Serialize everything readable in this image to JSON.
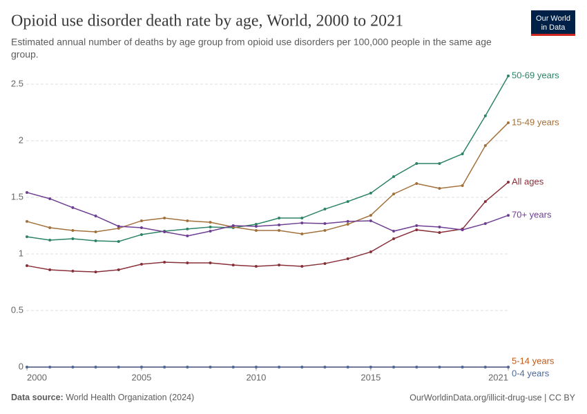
{
  "chart_data": {
    "type": "line",
    "title": "Opioid use disorder death rate by age, World, 2000 to 2021",
    "subtitle_lines": [
      "Estimated annual number of deaths by age group from opioid use disorders per 100,000 people in the same age",
      "group."
    ],
    "logo": [
      "Our World",
      "in Data"
    ],
    "source_label": "Data source:",
    "source": "World Health Organization (2024)",
    "url_license": "OurWorldinData.org/illicit-drug-use | CC BY",
    "x": [
      2000,
      2001,
      2002,
      2003,
      2004,
      2005,
      2006,
      2007,
      2008,
      2009,
      2010,
      2011,
      2012,
      2013,
      2014,
      2015,
      2016,
      2017,
      2018,
      2019,
      2020,
      2021
    ],
    "xlim": [
      2000,
      2021
    ],
    "xticks": [
      2000,
      2005,
      2010,
      2015,
      2021
    ],
    "ylim": [
      0,
      2.5
    ],
    "yticks": [
      0,
      0.5,
      1,
      1.5,
      2,
      2.5
    ],
    "grid": true,
    "series": [
      {
        "name": "50-69 years",
        "color": "#2c8465",
        "values": [
          1.152,
          1.122,
          1.134,
          1.116,
          1.11,
          1.171,
          1.201,
          1.22,
          1.238,
          1.232,
          1.262,
          1.317,
          1.317,
          1.396,
          1.463,
          1.537,
          1.683,
          1.799,
          1.799,
          1.884,
          2.22,
          2.573
        ]
      },
      {
        "name": "15-49 years",
        "color": "#a2703b",
        "values": [
          1.287,
          1.232,
          1.207,
          1.195,
          1.226,
          1.293,
          1.317,
          1.293,
          1.28,
          1.238,
          1.207,
          1.207,
          1.177,
          1.207,
          1.262,
          1.341,
          1.53,
          1.622,
          1.579,
          1.604,
          1.957,
          2.159
        ]
      },
      {
        "name": "All ages",
        "color": "#883039",
        "values": [
          0.896,
          0.86,
          0.848,
          0.841,
          0.86,
          0.909,
          0.927,
          0.921,
          0.921,
          0.902,
          0.89,
          0.902,
          0.89,
          0.915,
          0.957,
          1.018,
          1.134,
          1.213,
          1.189,
          1.22,
          1.463,
          1.634
        ]
      },
      {
        "name": "70+ years",
        "color": "#6d3e91",
        "values": [
          1.543,
          1.488,
          1.409,
          1.335,
          1.244,
          1.232,
          1.195,
          1.159,
          1.201,
          1.25,
          1.244,
          1.256,
          1.274,
          1.268,
          1.287,
          1.293,
          1.201,
          1.25,
          1.238,
          1.213,
          1.268,
          1.341
        ]
      },
      {
        "name": "5-14 years",
        "color": "#c05917",
        "values": [
          0,
          0,
          0,
          0,
          0,
          0,
          0,
          0,
          0,
          0,
          0,
          0,
          0,
          0,
          0,
          0,
          0,
          0,
          0,
          0,
          0,
          0
        ]
      },
      {
        "name": "0-4 years",
        "color": "#4c6a9c",
        "values": [
          0,
          0,
          0,
          0,
          0,
          0,
          0,
          0,
          0,
          0,
          0,
          0,
          0,
          0,
          0,
          0,
          0,
          0,
          0,
          0,
          0,
          0
        ]
      }
    ]
  }
}
